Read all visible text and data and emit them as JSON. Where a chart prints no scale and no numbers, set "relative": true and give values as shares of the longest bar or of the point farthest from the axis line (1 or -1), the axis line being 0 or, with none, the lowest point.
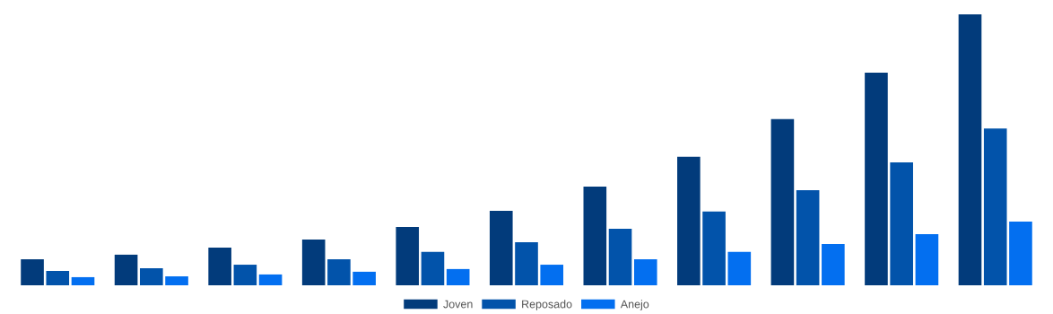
{
  "chart_data": {
    "type": "bar",
    "relative": true,
    "categories": [
      null,
      null,
      null,
      null,
      null,
      null,
      null,
      null,
      null,
      null,
      null
    ],
    "series": [
      {
        "name": "Joven",
        "color": "#023b7b",
        "values": [
          0.096,
          0.113,
          0.139,
          0.169,
          0.215,
          0.275,
          0.364,
          0.474,
          0.613,
          0.785,
          1
        ]
      },
      {
        "name": "Reposado",
        "color": "#0253aa",
        "values": [
          0.053,
          0.063,
          0.076,
          0.096,
          0.123,
          0.159,
          0.209,
          0.272,
          0.351,
          0.454,
          0.579
        ]
      },
      {
        "name": "Anejo",
        "color": "#036ff0",
        "values": [
          0.03,
          0.033,
          0.04,
          0.05,
          0.06,
          0.076,
          0.096,
          0.123,
          0.152,
          0.189,
          0.235
        ]
      }
    ],
    "legend": "bottom",
    "grid": false
  }
}
